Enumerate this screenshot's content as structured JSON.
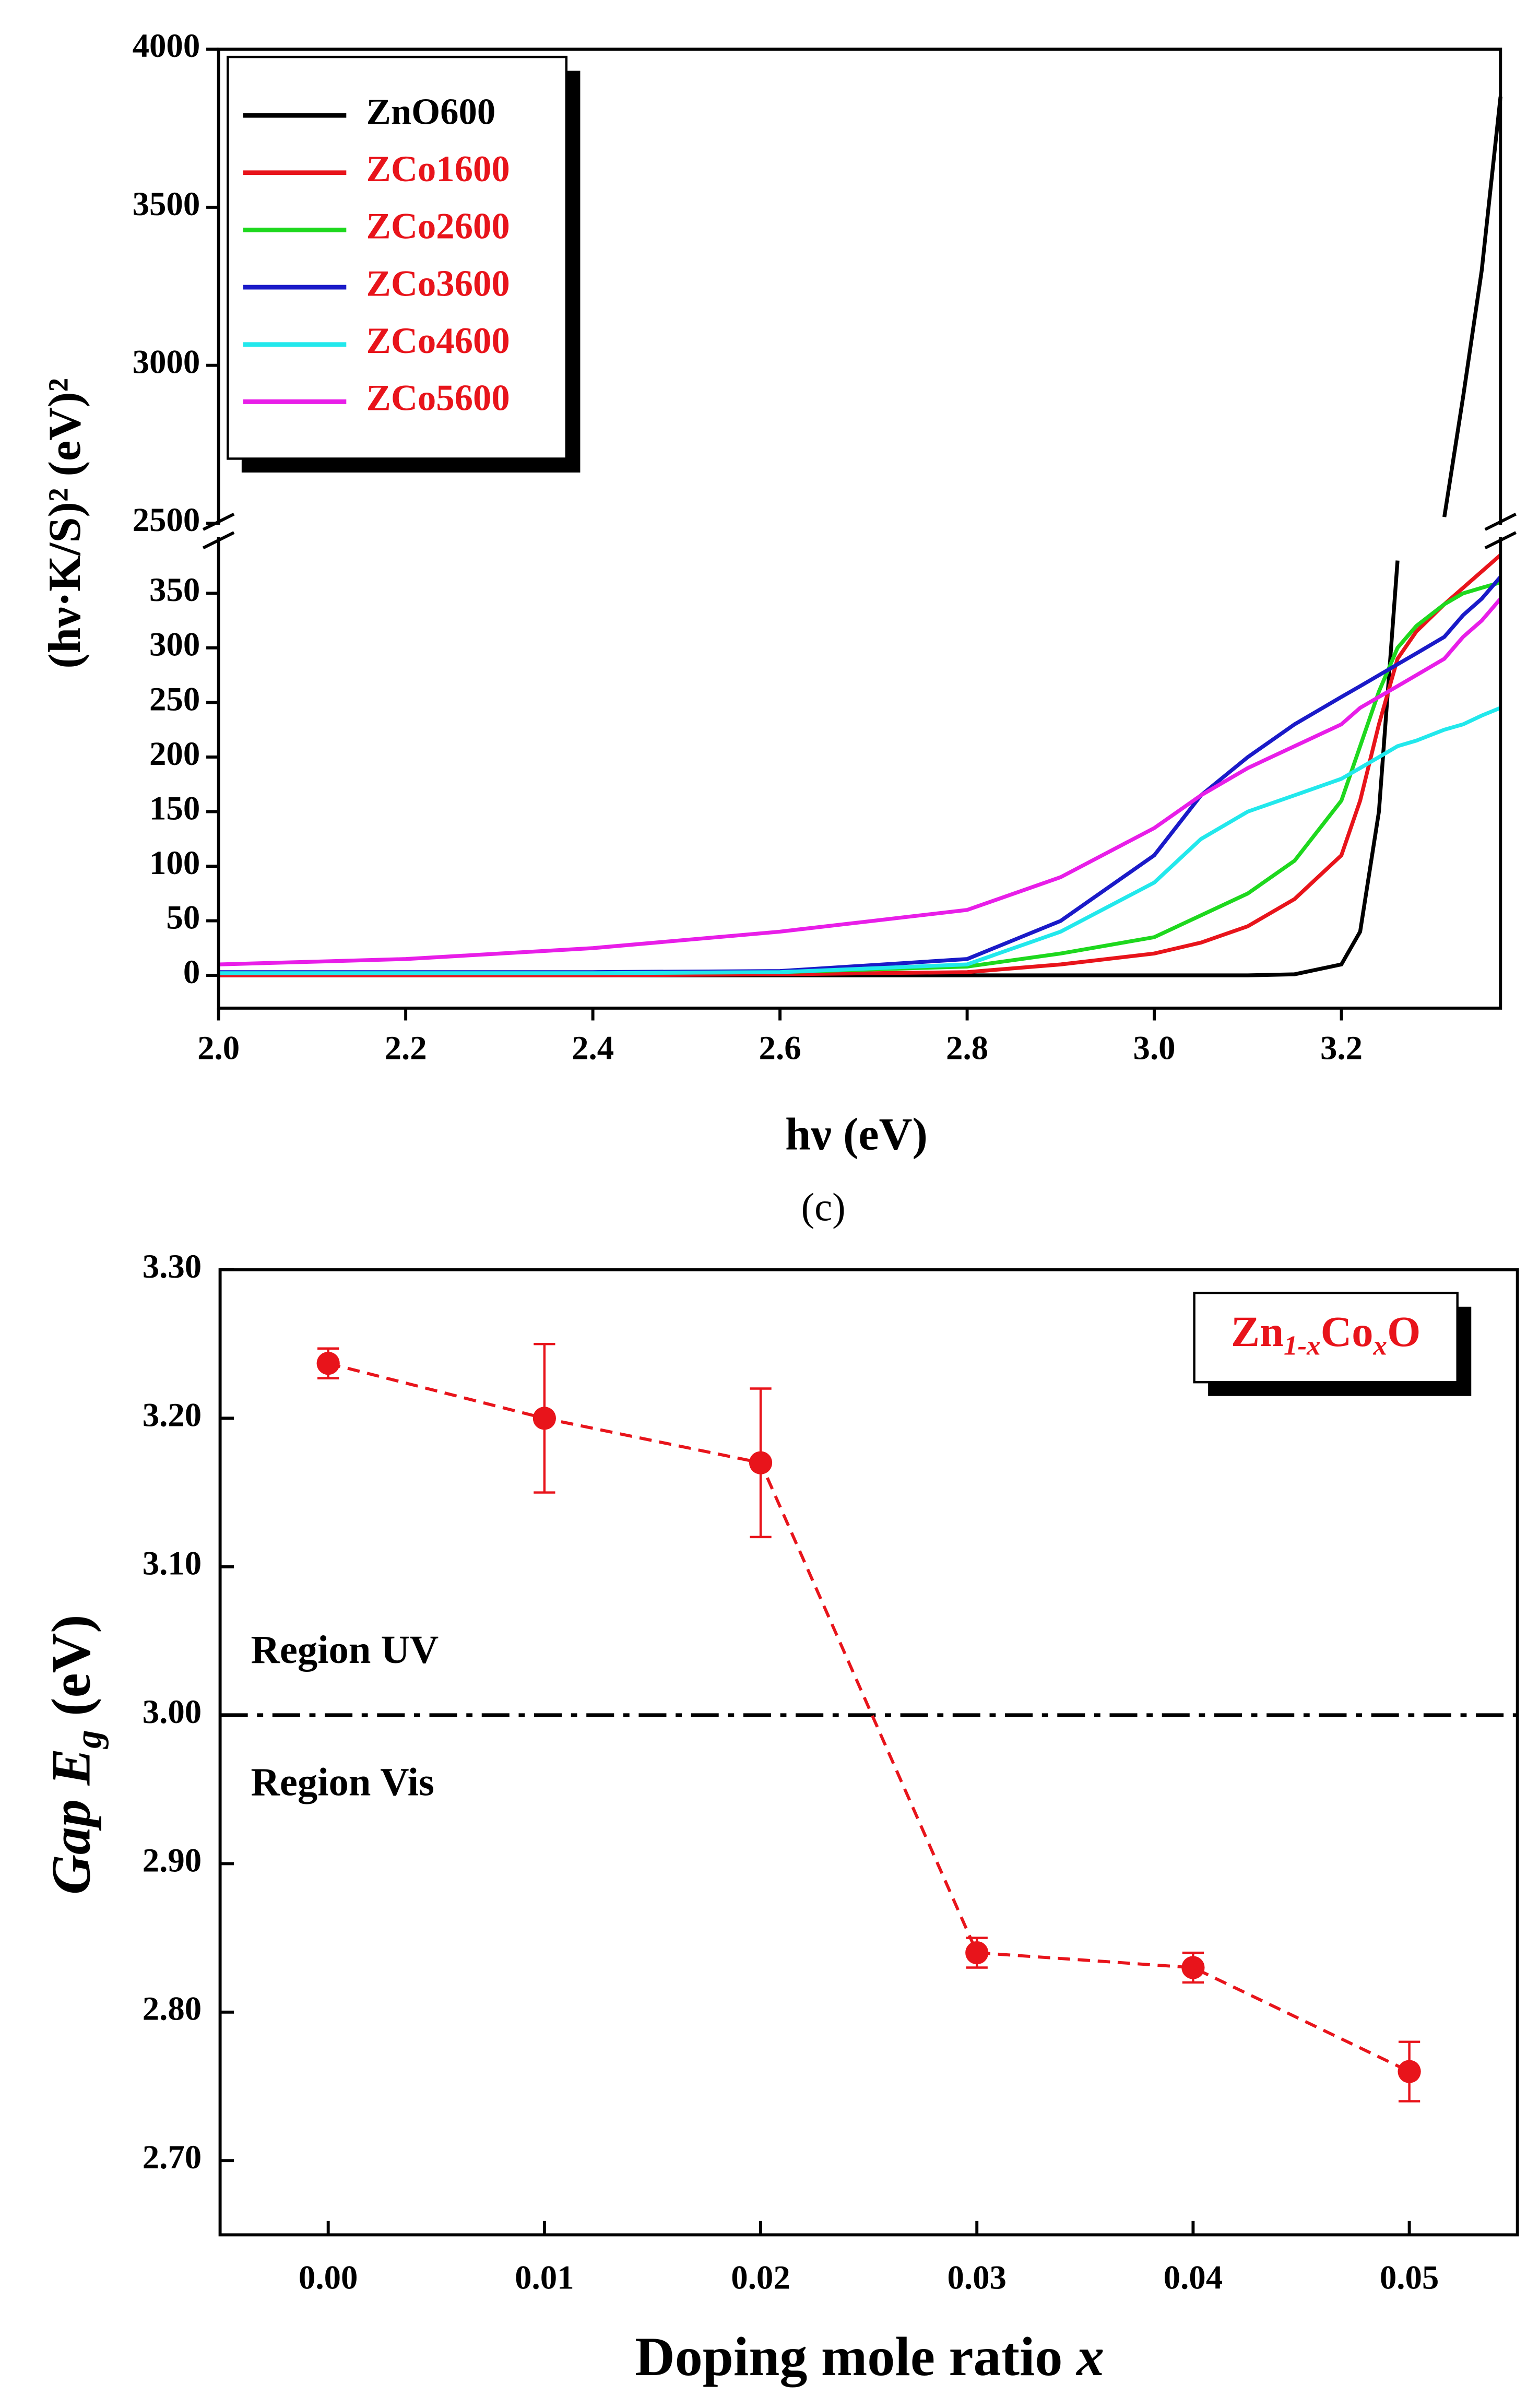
{
  "caption": "(c)",
  "chart_data": [
    {
      "type": "line",
      "xlabel": "hν (eV)",
      "ylabel": "(hν·K/S)² (eV)²",
      "x": [
        2.0,
        2.2,
        2.4,
        2.6,
        2.8,
        2.9,
        3.0,
        3.05,
        3.1,
        3.15,
        3.2,
        3.22,
        3.24,
        3.26,
        3.28,
        3.31,
        3.33,
        3.35,
        3.37
      ],
      "xlim": [
        2.0,
        3.37
      ],
      "xticks": [
        {
          "value": 2.0,
          "label": "2.0"
        },
        2.2,
        2.4,
        2.6,
        2.8,
        {
          "value": 3.0,
          "label": "3.0"
        },
        3.2
      ],
      "ylim": [
        -30,
        4000
      ],
      "ybreak": [
        400,
        2500
      ],
      "yticks": [
        0,
        50,
        100,
        150,
        200,
        250,
        300,
        350,
        2500,
        3000,
        3500,
        4000
      ],
      "series": [
        {
          "name": "ZnO600",
          "color": "#000000",
          "label_color": "#000000",
          "values": [
            0,
            0,
            0,
            0,
            0,
            0,
            0,
            0,
            0,
            1,
            10,
            40,
            150,
            380,
            null,
            2520,
            2900,
            3300,
            3850
          ]
        },
        {
          "name": "ZCo1600",
          "color": "#e8141b",
          "label_color": "#e8141b",
          "values": [
            0,
            0,
            0,
            1,
            3,
            10,
            20,
            30,
            45,
            70,
            110,
            160,
            230,
            290,
            315,
            340,
            355,
            370,
            385
          ]
        },
        {
          "name": "ZCo2600",
          "color": "#1ed81e",
          "label_color": "#e8141b",
          "values": [
            2,
            2,
            2,
            3,
            8,
            20,
            35,
            55,
            75,
            105,
            160,
            210,
            260,
            300,
            320,
            340,
            350,
            355,
            360
          ]
        },
        {
          "name": "ZCo3600",
          "color": "#1a1ac8",
          "label_color": "#e8141b",
          "values": [
            3,
            3,
            3,
            4,
            15,
            50,
            110,
            165,
            200,
            230,
            255,
            265,
            275,
            285,
            295,
            310,
            330,
            345,
            365
          ]
        },
        {
          "name": "ZCo4600",
          "color": "#22e8ec",
          "label_color": "#e8141b",
          "values": [
            2,
            2,
            2,
            3,
            10,
            40,
            85,
            125,
            150,
            165,
            180,
            190,
            200,
            210,
            215,
            225,
            230,
            238,
            245
          ]
        },
        {
          "name": "ZCo5600",
          "color": "#e81ee8",
          "label_color": "#e8141b",
          "values": [
            10,
            15,
            25,
            40,
            60,
            90,
            135,
            165,
            190,
            210,
            230,
            245,
            255,
            265,
            275,
            290,
            310,
            325,
            345
          ]
        }
      ]
    },
    {
      "type": "scatter",
      "xlabel_parts": [
        "Doping mole ratio ",
        "x"
      ],
      "ylabel_parts": [
        "Gap E",
        "g",
        " (eV)"
      ],
      "legend_parts": [
        "Zn",
        "1-x",
        "Co",
        "x",
        "O"
      ],
      "x": [
        0.0,
        0.01,
        0.02,
        0.03,
        0.04,
        0.05
      ],
      "values": [
        3.237,
        3.2,
        3.17,
        2.84,
        2.83,
        2.76
      ],
      "errors": [
        0.01,
        0.05,
        0.05,
        0.01,
        0.01,
        0.02
      ],
      "color": "#e8141b",
      "xlim": [
        -0.005,
        0.055
      ],
      "xticks": [
        {
          "value": 0.0,
          "label": "0.00"
        },
        0.01,
        0.02,
        0.03,
        0.04,
        0.05
      ],
      "ylim": [
        2.65,
        3.3
      ],
      "yticks": [
        {
          "value": 2.7,
          "label": "2.70"
        },
        {
          "value": 2.8,
          "label": "2.80"
        },
        {
          "value": 2.9,
          "label": "2.90"
        },
        {
          "value": 3.0,
          "label": "3.00"
        },
        {
          "value": 3.1,
          "label": "3.10"
        },
        {
          "value": 3.2,
          "label": "3.20"
        },
        {
          "value": 3.3,
          "label": "3.30"
        }
      ],
      "hline": 3.0,
      "annotations": [
        "Region UV",
        "Region Vis"
      ]
    }
  ]
}
